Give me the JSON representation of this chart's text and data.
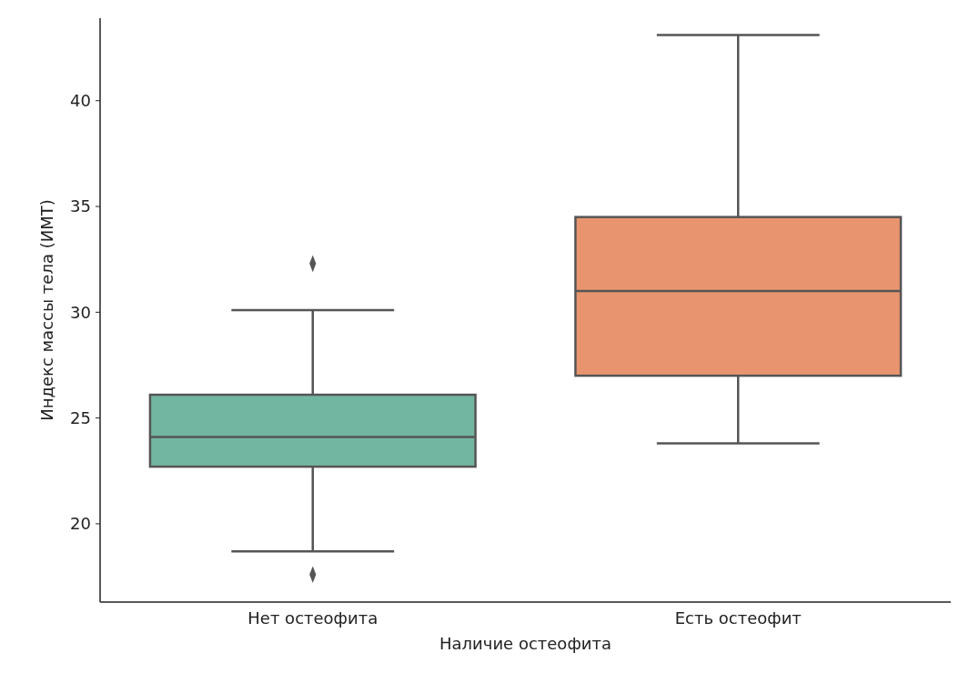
{
  "chart_data": {
    "type": "box",
    "xlabel": "Наличие остеофита",
    "ylabel": "Индекс массы тела (ИМТ)",
    "categories": [
      "Нет остеофита",
      "Есть остеофит"
    ],
    "colors": [
      "#72b6a1",
      "#e8956f"
    ],
    "boxes": [
      {
        "low": 18.7,
        "q1": 22.7,
        "median": 24.1,
        "q3": 26.1,
        "high": 30.1,
        "outliers": [
          32.3,
          17.6
        ]
      },
      {
        "low": 23.8,
        "q1": 27.0,
        "median": 31.0,
        "q3": 34.5,
        "high": 43.1
      }
    ],
    "ylim": [
      16.3,
      43.9
    ],
    "yticks": [
      20,
      25,
      30,
      35,
      40
    ],
    "grid": false,
    "marker": "diamond"
  }
}
